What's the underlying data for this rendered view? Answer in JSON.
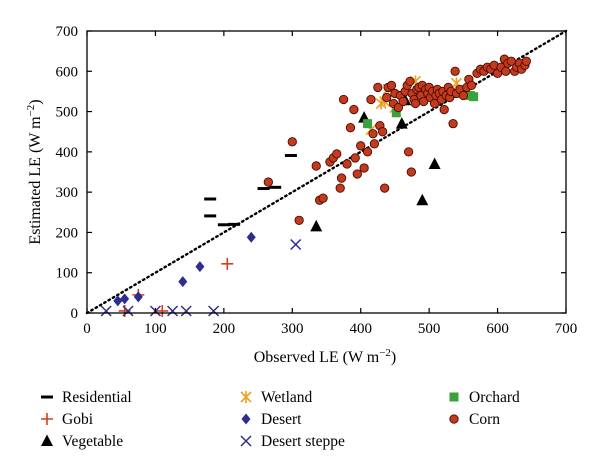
{
  "chart_data": {
    "type": "scatter",
    "xlabel": "Observed LE (W m",
    "xlabel_sup": "−2",
    "xlabel_end": ")",
    "ylabel": "Estimated LE (W m",
    "ylabel_sup": "−2",
    "ylabel_end": ")",
    "xlim": [
      0,
      700
    ],
    "ylim": [
      0,
      700
    ],
    "xticks": [
      "0",
      "100",
      "200",
      "300",
      "400",
      "500",
      "600",
      "700"
    ],
    "yticks": [
      "0",
      "100",
      "200",
      "300",
      "400",
      "500",
      "600",
      "700"
    ],
    "reference_line": {
      "style": "dotted",
      "points": [
        [
          0,
          0
        ],
        [
          700,
          700
        ]
      ]
    },
    "legend_position": "bottom",
    "series": [
      {
        "name": "Residential",
        "marker": "dash",
        "color": "#000000",
        "points": [
          [
            180,
            283
          ],
          [
            180,
            241
          ],
          [
            200,
            219
          ],
          [
            215,
            220
          ],
          [
            258,
            309
          ],
          [
            275,
            312
          ],
          [
            298,
            391
          ]
        ]
      },
      {
        "name": "Gobi",
        "marker": "plus",
        "color": "#d2401c",
        "points": [
          [
            55,
            5
          ],
          [
            75,
            45
          ],
          [
            110,
            5
          ],
          [
            205,
            122
          ]
        ]
      },
      {
        "name": "Vegetable",
        "marker": "triangle",
        "color": "#000000",
        "points": [
          [
            335,
            215
          ],
          [
            405,
            485
          ],
          [
            460,
            470
          ],
          [
            465,
            528
          ],
          [
            490,
            280
          ],
          [
            508,
            370
          ]
        ]
      },
      {
        "name": "Wetland",
        "marker": "asterisk",
        "color": "#f0a020",
        "points": [
          [
            415,
            455
          ],
          [
            430,
            520
          ],
          [
            435,
            525
          ],
          [
            440,
            555
          ],
          [
            450,
            510
          ],
          [
            480,
            575
          ],
          [
            540,
            570
          ],
          [
            545,
            550
          ]
        ]
      },
      {
        "name": "Desert",
        "marker": "diamond",
        "color": "#2e2d8f",
        "points": [
          [
            45,
            30
          ],
          [
            55,
            35
          ],
          [
            75,
            40
          ],
          [
            140,
            78
          ],
          [
            165,
            115
          ],
          [
            240,
            188
          ]
        ]
      },
      {
        "name": "Desert steppe",
        "marker": "x",
        "color": "#2e2d8f",
        "points": [
          [
            28,
            5
          ],
          [
            60,
            5
          ],
          [
            100,
            5
          ],
          [
            125,
            5
          ],
          [
            145,
            5
          ],
          [
            185,
            5
          ],
          [
            305,
            170
          ]
        ]
      },
      {
        "name": "Orchard",
        "marker": "square",
        "color": "#3aa23a",
        "points": [
          [
            410,
            470
          ],
          [
            452,
            497
          ],
          [
            548,
            550
          ],
          [
            560,
            540
          ],
          [
            565,
            537
          ]
        ]
      },
      {
        "name": "Corn",
        "marker": "circle",
        "color": "#c33a1f",
        "points": [
          [
            265,
            325
          ],
          [
            300,
            425
          ],
          [
            310,
            230
          ],
          [
            335,
            365
          ],
          [
            340,
            280
          ],
          [
            345,
            285
          ],
          [
            355,
            375
          ],
          [
            360,
            385
          ],
          [
            365,
            395
          ],
          [
            370,
            310
          ],
          [
            372,
            335
          ],
          [
            375,
            530
          ],
          [
            380,
            370
          ],
          [
            385,
            460
          ],
          [
            390,
            505
          ],
          [
            392,
            385
          ],
          [
            395,
            345
          ],
          [
            400,
            415
          ],
          [
            405,
            360
          ],
          [
            410,
            400
          ],
          [
            415,
            530
          ],
          [
            418,
            445
          ],
          [
            420,
            420
          ],
          [
            425,
            560
          ],
          [
            428,
            465
          ],
          [
            432,
            450
          ],
          [
            435,
            310
          ],
          [
            438,
            535
          ],
          [
            440,
            560
          ],
          [
            445,
            565
          ],
          [
            448,
            520
          ],
          [
            450,
            545
          ],
          [
            455,
            510
          ],
          [
            458,
            540
          ],
          [
            462,
            525
          ],
          [
            465,
            550
          ],
          [
            468,
            565
          ],
          [
            470,
            400
          ],
          [
            472,
            575
          ],
          [
            474,
            350
          ],
          [
            475,
            545
          ],
          [
            478,
            530
          ],
          [
            480,
            520
          ],
          [
            482,
            555
          ],
          [
            485,
            560
          ],
          [
            488,
            540
          ],
          [
            490,
            565
          ],
          [
            492,
            525
          ],
          [
            495,
            555
          ],
          [
            498,
            545
          ],
          [
            500,
            560
          ],
          [
            502,
            535
          ],
          [
            505,
            550
          ],
          [
            508,
            520
          ],
          [
            510,
            540
          ],
          [
            512,
            555
          ],
          [
            515,
            545
          ],
          [
            518,
            530
          ],
          [
            520,
            550
          ],
          [
            522,
            505
          ],
          [
            525,
            540
          ],
          [
            528,
            560
          ],
          [
            530,
            535
          ],
          [
            532,
            550
          ],
          [
            535,
            470
          ],
          [
            538,
            600
          ],
          [
            540,
            545
          ],
          [
            545,
            555
          ],
          [
            550,
            540
          ],
          [
            555,
            560
          ],
          [
            558,
            580
          ],
          [
            562,
            565
          ],
          [
            570,
            595
          ],
          [
            575,
            605
          ],
          [
            580,
            600
          ],
          [
            585,
            610
          ],
          [
            590,
            605
          ],
          [
            595,
            615
          ],
          [
            600,
            595
          ],
          [
            605,
            610
          ],
          [
            610,
            630
          ],
          [
            612,
            600
          ],
          [
            615,
            620
          ],
          [
            620,
            625
          ],
          [
            625,
            600
          ],
          [
            628,
            610
          ],
          [
            632,
            620
          ],
          [
            635,
            605
          ],
          [
            640,
            615
          ],
          [
            642,
            625
          ]
        ]
      }
    ]
  }
}
